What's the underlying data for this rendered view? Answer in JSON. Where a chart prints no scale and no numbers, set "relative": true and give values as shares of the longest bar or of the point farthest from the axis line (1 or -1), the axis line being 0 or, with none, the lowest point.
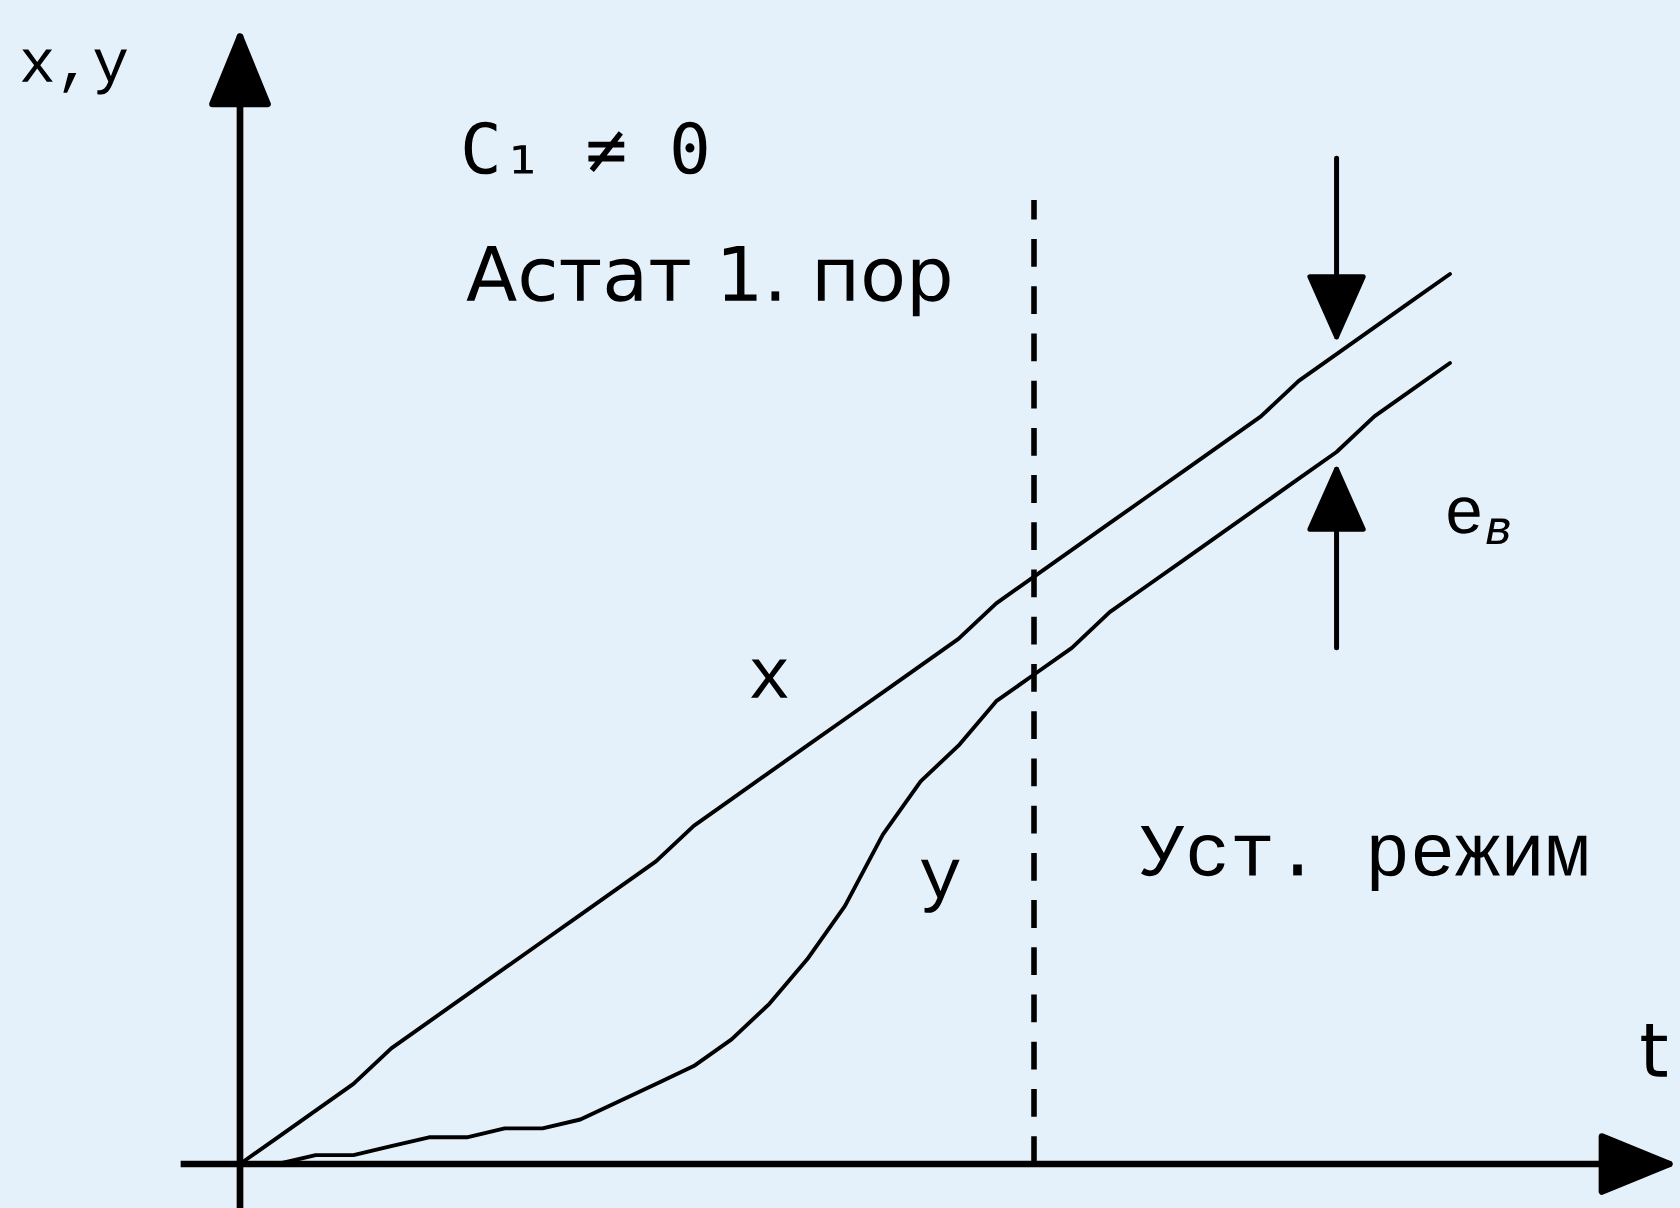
{
  "chart_data": {
    "type": "line",
    "relative": true,
    "xlabel": "t",
    "ylabel": "x,y",
    "categories": [
      null,
      null,
      null,
      null,
      null,
      null,
      null,
      null,
      null,
      null,
      null,
      null,
      null,
      null,
      null,
      null,
      null,
      null,
      null,
      null,
      null,
      null,
      null,
      null,
      null,
      null,
      null,
      null,
      null,
      null,
      null,
      null,
      null
    ],
    "series": [
      {
        "name": "x",
        "color": "#000000",
        "values": [
          0,
          0.03,
          0.06,
          0.09,
          0.13,
          0.16,
          0.19,
          0.22,
          0.25,
          0.28,
          0.31,
          0.34,
          0.38,
          0.41,
          0.44,
          0.47,
          0.5,
          0.53,
          0.56,
          0.59,
          0.63,
          0.66,
          0.69,
          0.72,
          0.75,
          0.78,
          0.81,
          0.84,
          0.88,
          0.91,
          0.94,
          0.97,
          1
        ]
      },
      {
        "name": "y",
        "color": "#000000",
        "values": [
          0,
          0,
          0.01,
          0.01,
          0.02,
          0.03,
          0.03,
          0.04,
          0.04,
          0.05,
          0.07,
          0.09,
          0.11,
          0.14,
          0.18,
          0.23,
          0.29,
          0.37,
          0.43,
          0.47,
          0.52,
          0.55,
          0.58,
          0.62,
          0.65,
          0.68,
          0.71,
          0.74,
          0.77,
          0.8,
          0.84,
          0.87,
          0.9
        ]
      }
    ],
    "annotations": [
      "C₁ ≠ 0",
      "Астат 1. пор",
      "e$_{в}$",
      "Уст. режим"
    ]
  }
}
